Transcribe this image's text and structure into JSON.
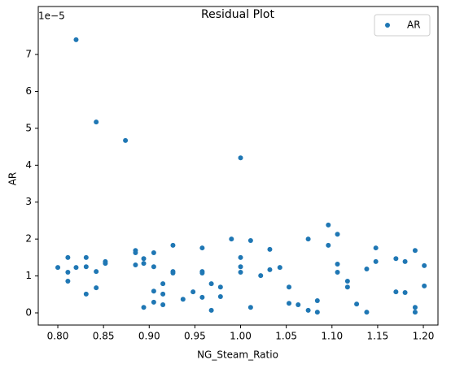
{
  "chart_data": {
    "type": "scatter",
    "title": "Residual Plot",
    "x_label": "NG_Steam_Ratio",
    "y_label": "AR",
    "y_offset_label": "1e−5",
    "series": [
      {
        "name": "AR",
        "color": "#1f77b4",
        "x": [
          0.8,
          0.811,
          0.811,
          0.811,
          0.82,
          0.82,
          0.831,
          0.831,
          0.831,
          0.842,
          0.842,
          0.842,
          0.852,
          0.852,
          0.874,
          0.885,
          0.885,
          0.885,
          0.894,
          0.894,
          0.894,
          0.905,
          0.905,
          0.905,
          0.905,
          0.915,
          0.915,
          0.915,
          0.926,
          0.926,
          0.926,
          0.937,
          0.948,
          0.958,
          0.958,
          0.958,
          0.958,
          0.968,
          0.968,
          0.978,
          0.978,
          0.99,
          1.0,
          1.0,
          1.0,
          1.0,
          1.011,
          1.011,
          1.022,
          1.032,
          1.032,
          1.043,
          1.053,
          1.053,
          1.063,
          1.074,
          1.074,
          1.084,
          1.084,
          1.096,
          1.096,
          1.106,
          1.106,
          1.106,
          1.117,
          1.117,
          1.127,
          1.138,
          1.138,
          1.148,
          1.148,
          1.17,
          1.17,
          1.18,
          1.18,
          1.191,
          1.191,
          1.191,
          1.201,
          1.201
        ],
        "values": [
          1.23,
          1.5,
          1.1,
          0.86,
          7.4,
          1.23,
          1.5,
          1.25,
          0.51,
          5.17,
          1.12,
          0.68,
          1.39,
          1.34,
          4.67,
          1.69,
          1.63,
          1.3,
          1.47,
          1.34,
          0.15,
          1.63,
          1.25,
          0.59,
          0.29,
          0.79,
          0.51,
          0.22,
          1.83,
          1.12,
          1.08,
          0.37,
          0.57,
          1.76,
          1.12,
          1.08,
          0.42,
          0.79,
          0.07,
          0.7,
          0.44,
          2.0,
          4.2,
          1.5,
          1.1,
          1.25,
          1.96,
          0.15,
          1.01,
          1.72,
          1.17,
          1.23,
          0.7,
          0.26,
          0.22,
          2.0,
          0.07,
          0.33,
          0.02,
          2.38,
          1.83,
          2.13,
          1.32,
          1.1,
          0.86,
          0.7,
          0.24,
          1.19,
          0.02,
          1.76,
          1.39,
          1.47,
          0.57,
          1.39,
          0.55,
          1.69,
          0.15,
          0.02,
          1.28,
          0.73
        ]
      }
    ],
    "xlim": [
      0.7786,
      1.216
    ],
    "ylim": [
      -0.33,
      8.3
    ],
    "xticks": [
      {
        "value": 0.8,
        "label": "0.80"
      },
      {
        "value": 0.85,
        "label": "0.85"
      },
      {
        "value": 0.9,
        "label": "0.90"
      },
      {
        "value": 0.95,
        "label": "0.95"
      },
      {
        "value": 1.0,
        "label": "1.00"
      },
      {
        "value": 1.05,
        "label": "1.05"
      },
      {
        "value": 1.1,
        "label": "1.10"
      },
      {
        "value": 1.15,
        "label": "1.15"
      },
      {
        "value": 1.2,
        "label": "1.20"
      }
    ],
    "yticks": [
      0,
      1,
      2,
      3,
      4,
      5,
      6,
      7
    ],
    "grid": false,
    "legend": "upper right"
  }
}
